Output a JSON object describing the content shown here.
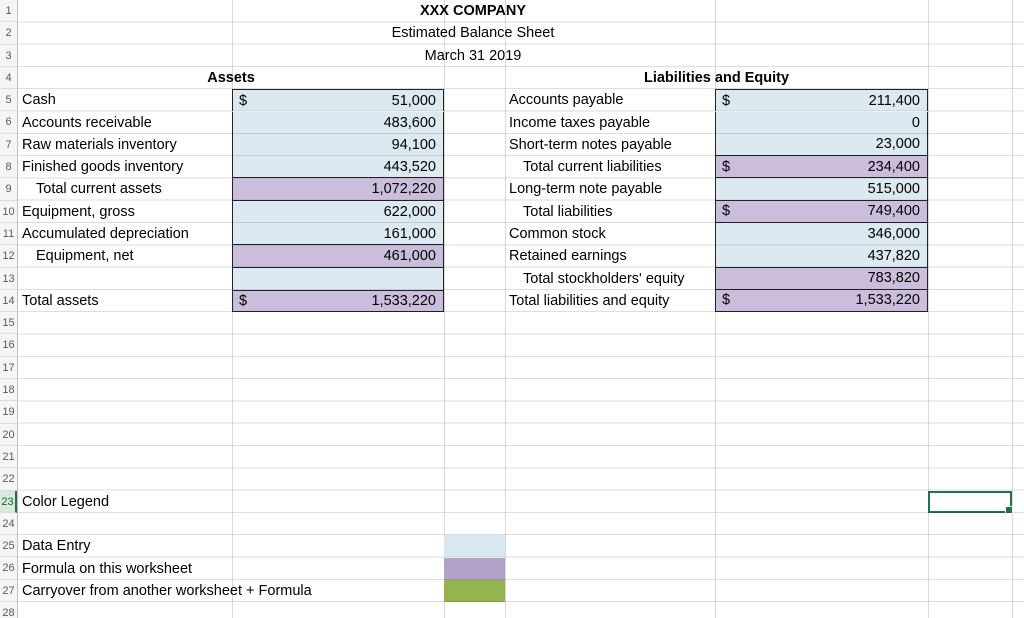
{
  "title_block": {
    "company": "XXX COMPANY",
    "statement": "Estimated Balance Sheet",
    "date": "March 31 2019"
  },
  "sections": {
    "assets": {
      "header": "Assets",
      "rows": [
        {
          "label": "Cash",
          "currency": "$",
          "value": "51,000"
        },
        {
          "label": "Accounts receivable",
          "currency": "",
          "value": "483,600"
        },
        {
          "label": "Raw materials inventory",
          "currency": "",
          "value": "94,100"
        },
        {
          "label": "Finished goods inventory",
          "currency": "",
          "value": "443,520"
        },
        {
          "label": "Total current assets",
          "currency": "",
          "value": "1,072,220"
        },
        {
          "label": "Equipment, gross",
          "currency": "",
          "value": "622,000"
        },
        {
          "label": "Accumulated depreciation",
          "currency": "",
          "value": "161,000"
        },
        {
          "label": "Equipment, net",
          "currency": "",
          "value": "461,000"
        },
        {
          "label": "",
          "currency": "",
          "value": ""
        },
        {
          "label": "Total assets",
          "currency": "$",
          "value": "1,533,220"
        }
      ]
    },
    "liabilities_equity": {
      "header": "Liabilities and Equity",
      "rows": [
        {
          "label": "Accounts payable",
          "currency": "$",
          "value": "211,400"
        },
        {
          "label": "Income taxes payable",
          "currency": "",
          "value": "0"
        },
        {
          "label": "Short-term notes payable",
          "currency": "",
          "value": "23,000"
        },
        {
          "label": "Total current liabilities",
          "currency": "$",
          "value": "234,400"
        },
        {
          "label": "Long-term note payable",
          "currency": "",
          "value": "515,000"
        },
        {
          "label": "Total liabilities",
          "currency": "$",
          "value": "749,400"
        },
        {
          "label": "Common stock",
          "currency": "",
          "value": "346,000"
        },
        {
          "label": "Retained earnings",
          "currency": "",
          "value": "437,820"
        },
        {
          "label": "Total stockholders' equity",
          "currency": "",
          "value": "783,820"
        },
        {
          "label": "Total liabilities and equity",
          "currency": "$",
          "value": "1,533,220"
        }
      ]
    }
  },
  "legend": {
    "title": "Color Legend",
    "items": [
      {
        "label": "Data Entry",
        "swatch_color": "#d9e7f0"
      },
      {
        "label": "Formula on this worksheet",
        "swatch_color": "#b1a2c7"
      },
      {
        "label": "Carryover from another worksheet + Formula",
        "swatch_color": "#95b34e"
      }
    ]
  },
  "selection": {
    "row": "23"
  },
  "colors": {
    "data_entry_fill": "#dce9f1",
    "formula_fill": "#cbbedc",
    "carryover_fill": "#95b34e",
    "selection_border": "#217346",
    "gridline": "#d9d9d9"
  },
  "row_headers": [
    "1",
    "2",
    "3",
    "4",
    "5",
    "6",
    "7",
    "8",
    "9",
    "10",
    "11",
    "12",
    "13",
    "14",
    "15",
    "16",
    "17",
    "18",
    "19",
    "20",
    "21",
    "22",
    "23",
    "24",
    "25",
    "26",
    "27",
    "28"
  ]
}
